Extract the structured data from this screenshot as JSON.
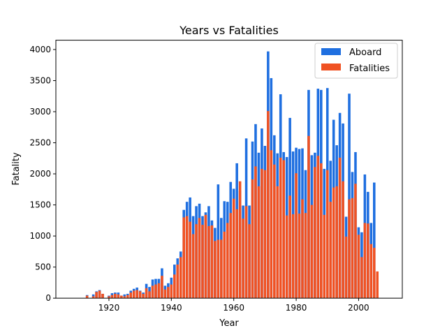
{
  "chart_data": {
    "type": "bar",
    "title": "Years vs Fatalities",
    "xlabel": "Year",
    "ylabel": "Fatality",
    "xlim": [
      1903,
      2014
    ],
    "ylim": [
      0,
      4150
    ],
    "xticks": [
      1920,
      1940,
      1960,
      1980,
      2000
    ],
    "yticks": [
      0,
      500,
      1000,
      1500,
      2000,
      2500,
      3000,
      3500,
      4000
    ],
    "legend_position": "top-right",
    "x": [
      1908,
      1909,
      1910,
      1911,
      1912,
      1913,
      1914,
      1915,
      1916,
      1917,
      1918,
      1919,
      1920,
      1921,
      1922,
      1923,
      1924,
      1925,
      1926,
      1927,
      1928,
      1929,
      1930,
      1931,
      1932,
      1933,
      1934,
      1935,
      1936,
      1937,
      1938,
      1939,
      1940,
      1941,
      1942,
      1943,
      1944,
      1945,
      1946,
      1947,
      1948,
      1949,
      1950,
      1951,
      1952,
      1953,
      1954,
      1955,
      1956,
      1957,
      1958,
      1959,
      1960,
      1961,
      1962,
      1963,
      1964,
      1965,
      1966,
      1967,
      1968,
      1969,
      1970,
      1971,
      1972,
      1973,
      1974,
      1975,
      1976,
      1977,
      1978,
      1979,
      1980,
      1981,
      1982,
      1983,
      1984,
      1985,
      1986,
      1987,
      1988,
      1989,
      1990,
      1991,
      1992,
      1993,
      1994,
      1995,
      1996,
      1997,
      1998,
      1999,
      2000,
      2001,
      2002,
      2003,
      2004,
      2005,
      2006,
      2007,
      2008,
      2009
    ],
    "series": [
      {
        "name": "Aboard",
        "color": "#1f6fe0",
        "values": [
          0,
          0,
          0,
          0,
          0,
          50,
          0,
          60,
          110,
          130,
          70,
          0,
          40,
          80,
          90,
          90,
          40,
          60,
          70,
          120,
          150,
          170,
          120,
          90,
          230,
          180,
          300,
          310,
          310,
          480,
          200,
          240,
          330,
          540,
          640,
          750,
          1420,
          1550,
          1620,
          1320,
          1480,
          1520,
          1320,
          1380,
          1480,
          1250,
          1130,
          1830,
          1290,
          1560,
          1550,
          1870,
          1760,
          2170,
          1730,
          1490,
          2570,
          1490,
          2520,
          2800,
          2340,
          2730,
          2450,
          3970,
          3540,
          2620,
          2330,
          3280,
          2350,
          2270,
          2900,
          2360,
          2420,
          2400,
          2410,
          2060,
          3350,
          2300,
          2340,
          3370,
          3350,
          2080,
          3380,
          2210,
          2870,
          2460,
          2980,
          2810,
          1310,
          3290,
          2030,
          2350,
          1140,
          1060,
          1990,
          1710,
          1210,
          1860,
          0,
          0,
          0,
          0
        ],
        "note": "values aligned to x; series values for years 2006-2009 shifted"
      },
      {
        "name": "Fatalities",
        "color": "#f05223",
        "values": [
          0,
          0,
          0,
          0,
          0,
          40,
          0,
          30,
          100,
          120,
          70,
          0,
          30,
          50,
          70,
          60,
          40,
          30,
          50,
          90,
          120,
          130,
          110,
          70,
          160,
          110,
          200,
          220,
          240,
          360,
          140,
          180,
          220,
          380,
          540,
          660,
          1300,
          1320,
          1230,
          1030,
          1190,
          1290,
          1180,
          1340,
          1160,
          1170,
          920,
          940,
          940,
          1070,
          1210,
          1370,
          1600,
          1430,
          1880,
          1280,
          1480,
          1190,
          1910,
          2120,
          1800,
          2080,
          2060,
          3010,
          2380,
          2150,
          1800,
          2260,
          2220,
          1330,
          1650,
          1350,
          2010,
          1360,
          1590,
          1370,
          2610,
          1500,
          2110,
          2290,
          2170,
          1340,
          2060,
          1550,
          1780,
          1800,
          2260,
          1880,
          990,
          1590,
          1610,
          1840,
          1020,
          660,
          1210,
          1200,
          870,
          810,
          430,
          0,
          0,
          0
        ]
      }
    ]
  }
}
